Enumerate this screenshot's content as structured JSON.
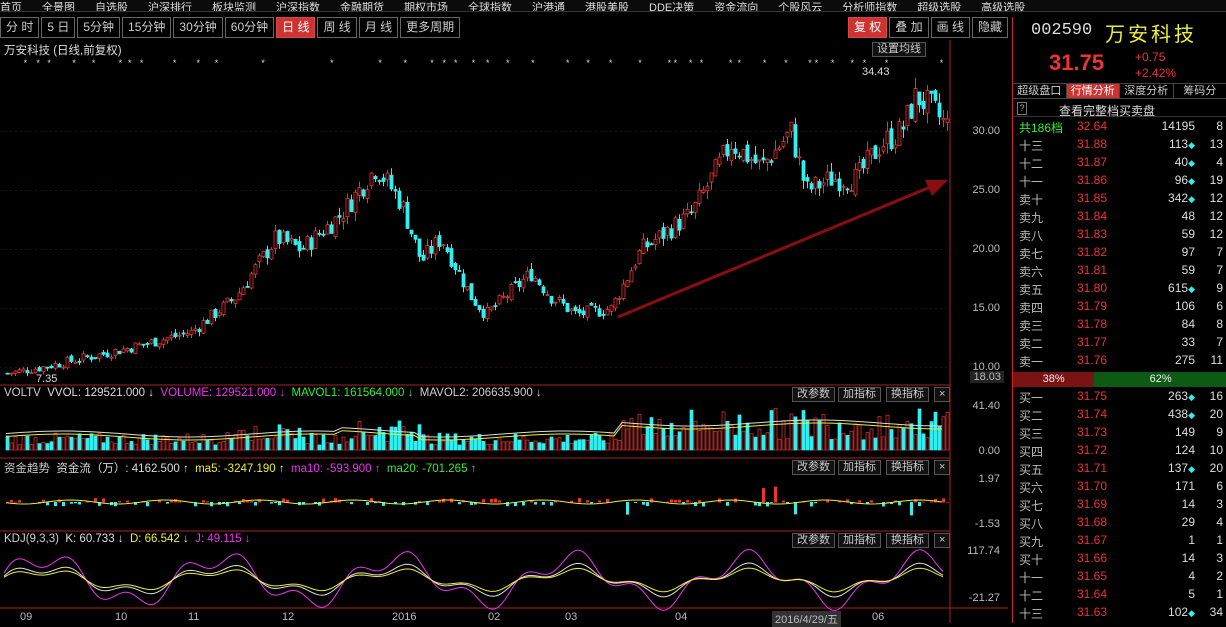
{
  "menu": [
    "首页",
    "全景图",
    "自选股",
    "沪深排行",
    "板块监测",
    "沪深指数",
    "金融期货",
    "期权市场",
    "全球指数",
    "沪港通",
    "港股美股",
    "DDE决策",
    "资金流向",
    "个股风云",
    "分析师指数",
    "超级选股",
    "高级选股"
  ],
  "toolbar": {
    "periods": [
      "分 时",
      "5 日",
      "5分钟",
      "15分钟",
      "30分钟",
      "60分钟",
      "日 线",
      "周 线",
      "月 线",
      "更多周期"
    ],
    "active_period": "日 线",
    "right_buttons": [
      "复 权",
      "叠 加",
      "画 线",
      "隐藏"
    ]
  },
  "chart_header": {
    "title": "万安科技 (日线,前复权)",
    "settings_button": "设置均线",
    "high_label": "34.43",
    "low_label": "7.35",
    "current_price_tag": "18.03"
  },
  "volume_panel": {
    "name": "VOLTV",
    "vvol": "VVOL: 129521.000 ↓",
    "volume": "VOLUME: 129521.000 ↓",
    "mavol1": "MAVOL1: 161564.000 ↓",
    "mavol2": "MAVOL2: 206635.900 ↓",
    "ymax": "41.40",
    "ymin": "0.00"
  },
  "flow_panel": {
    "name": "资金趋势",
    "main": "资金流（万）: 4162.500 ↑",
    "ma5": "ma5: -3247.190 ↑",
    "ma10": "ma10: -593.900 ↑",
    "ma20": "ma20: -701.265 ↑",
    "ymax": "1.97",
    "ymin": "-1.53"
  },
  "kdj_panel": {
    "name": "KDJ(9,3,3)",
    "k": "K: 60.733 ↓",
    "d": "D: 66.542 ↓",
    "j": "J: 49.115 ↓",
    "ymax": "117.74",
    "ymin": "-21.27"
  },
  "panel_buttons": [
    "改参数",
    "加指标",
    "换指标"
  ],
  "price_ticks": [
    "30.00",
    "25.00",
    "20.00",
    "15.00",
    "10.00"
  ],
  "x_ticks": [
    "09",
    "10",
    "11",
    "12",
    "2016",
    "02",
    "03",
    "04",
    "2016/4/29/五",
    "06"
  ],
  "stock": {
    "code": "002590",
    "name": "万安科技",
    "price": "31.75",
    "change": "+0.75",
    "change_pct": "+2.42%"
  },
  "tabs": [
    "超级盘口",
    "行情分析",
    "深度分析",
    "筹码分"
  ],
  "active_tab": "行情分析",
  "full_depth_label": "查看完整档买卖盘",
  "depth_header": {
    "label": "共186档",
    "price": "32.64",
    "qty": "14195",
    "cnt": "8"
  },
  "asks": [
    {
      "label": "十三",
      "price": "31.88",
      "qty": "113",
      "cnt": "13",
      "mark": true
    },
    {
      "label": "十二",
      "price": "31.87",
      "qty": "40",
      "cnt": "4",
      "mark": true
    },
    {
      "label": "十一",
      "price": "31.86",
      "qty": "96",
      "cnt": "19",
      "mark": true
    },
    {
      "label": "卖十",
      "price": "31.85",
      "qty": "342",
      "cnt": "12",
      "mark": true
    },
    {
      "label": "卖九",
      "price": "31.84",
      "qty": "48",
      "cnt": "12",
      "mark": false
    },
    {
      "label": "卖八",
      "price": "31.83",
      "qty": "59",
      "cnt": "12",
      "mark": false
    },
    {
      "label": "卖七",
      "price": "31.82",
      "qty": "97",
      "cnt": "7",
      "mark": false
    },
    {
      "label": "卖六",
      "price": "31.81",
      "qty": "59",
      "cnt": "7",
      "mark": false
    },
    {
      "label": "卖五",
      "price": "31.80",
      "qty": "615",
      "cnt": "9",
      "mark": true
    },
    {
      "label": "卖四",
      "price": "31.79",
      "qty": "106",
      "cnt": "6",
      "mark": false
    },
    {
      "label": "卖三",
      "price": "31.78",
      "qty": "84",
      "cnt": "8",
      "mark": false
    },
    {
      "label": "卖二",
      "price": "31.77",
      "qty": "33",
      "cnt": "7",
      "mark": false
    },
    {
      "label": "卖一",
      "price": "31.76",
      "qty": "275",
      "cnt": "11",
      "mark": false
    }
  ],
  "ratio": {
    "sell": "38%",
    "buy": "62%",
    "sell_frac": 0.38
  },
  "bids": [
    {
      "label": "买一",
      "price": "31.75",
      "qty": "263",
      "cnt": "16",
      "mark": true
    },
    {
      "label": "买二",
      "price": "31.74",
      "qty": "438",
      "cnt": "20",
      "mark": true
    },
    {
      "label": "买三",
      "price": "31.73",
      "qty": "149",
      "cnt": "9",
      "mark": false
    },
    {
      "label": "买四",
      "price": "31.72",
      "qty": "124",
      "cnt": "10",
      "mark": false
    },
    {
      "label": "买五",
      "price": "31.71",
      "qty": "137",
      "cnt": "20",
      "mark": true
    },
    {
      "label": "买六",
      "price": "31.70",
      "qty": "171",
      "cnt": "6",
      "mark": false
    },
    {
      "label": "买七",
      "price": "31.69",
      "qty": "14",
      "cnt": "3",
      "mark": false
    },
    {
      "label": "买八",
      "price": "31.68",
      "qty": "29",
      "cnt": "4",
      "mark": false
    },
    {
      "label": "买九",
      "price": "31.67",
      "qty": "1",
      "cnt": "1",
      "mark": false
    },
    {
      "label": "买十",
      "price": "31.66",
      "qty": "14",
      "cnt": "3",
      "mark": false
    },
    {
      "label": "十一",
      "price": "31.65",
      "qty": "4",
      "cnt": "2",
      "mark": false
    },
    {
      "label": "十二",
      "price": "31.64",
      "qty": "5",
      "cnt": "1",
      "mark": false
    },
    {
      "label": "十三",
      "price": "31.63",
      "qty": "102",
      "cnt": "34",
      "mark": true
    }
  ],
  "colors": {
    "up": "#e33",
    "down": "#3ee",
    "accent": "#c33",
    "trend_arrow": "#8b0d0d"
  }
}
